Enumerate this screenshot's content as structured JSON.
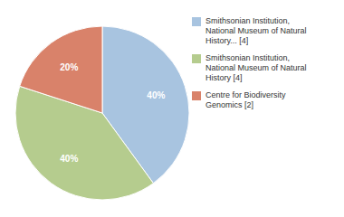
{
  "chart_data": {
    "type": "pie",
    "categories": [
      "Smithsonian Institution,\nNational Museum of Natural\nHistory... [4]",
      "Smithsonian Institution,\nNational Museum of Natural\nHistory [4]",
      "Centre for Biodiversity\nGenomics [2]"
    ],
    "values": [
      40,
      40,
      20
    ],
    "value_labels": [
      "40%",
      "40%",
      "20%"
    ],
    "colors": [
      "#a8c4e0",
      "#b5cc8e",
      "#d9826a"
    ],
    "data_labels": true,
    "legend": "right"
  }
}
